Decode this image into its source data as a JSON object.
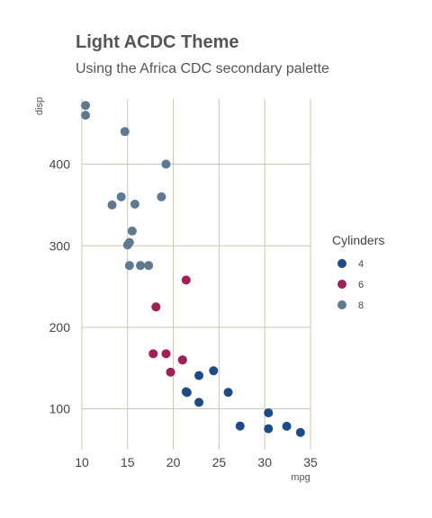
{
  "chart_data": {
    "type": "scatter",
    "title": "Light ACDC Theme",
    "subtitle": "Using the Africa CDC secondary palette",
    "xlabel": "mpg",
    "ylabel": "disp",
    "xlim": [
      10,
      35
    ],
    "ylim": [
      50,
      480
    ],
    "xticks": [
      10,
      15,
      20,
      25,
      30,
      35
    ],
    "yticks": [
      100,
      200,
      300,
      400
    ],
    "grid": true,
    "legend": {
      "title": "Cylinders",
      "position": "right"
    },
    "series": [
      {
        "name": "4",
        "color": "#1a4b8c",
        "points": [
          [
            22.8,
            108
          ],
          [
            24.4,
            146.7
          ],
          [
            22.8,
            140.8
          ],
          [
            32.4,
            78.7
          ],
          [
            30.4,
            75.7
          ],
          [
            33.9,
            71.1
          ],
          [
            21.5,
            120.1
          ],
          [
            27.3,
            79
          ],
          [
            26,
            120.3
          ],
          [
            30.4,
            95.1
          ],
          [
            21.4,
            121
          ]
        ]
      },
      {
        "name": "6",
        "color": "#a51d56",
        "points": [
          [
            21,
            160
          ],
          [
            21,
            160
          ],
          [
            21.4,
            258
          ],
          [
            18.1,
            225
          ],
          [
            19.2,
            167.6
          ],
          [
            17.8,
            167.6
          ],
          [
            19.7,
            145
          ]
        ]
      },
      {
        "name": "8",
        "color": "#5e7a92",
        "points": [
          [
            18.7,
            360
          ],
          [
            14.3,
            360
          ],
          [
            16.4,
            275.8
          ],
          [
            17.3,
            275.8
          ],
          [
            15.2,
            275.8
          ],
          [
            10.4,
            472
          ],
          [
            10.4,
            460
          ],
          [
            14.7,
            440
          ],
          [
            15.5,
            318
          ],
          [
            15.2,
            304
          ],
          [
            13.3,
            350
          ],
          [
            19.2,
            400
          ],
          [
            15.8,
            351
          ],
          [
            15,
            301
          ]
        ]
      }
    ]
  }
}
